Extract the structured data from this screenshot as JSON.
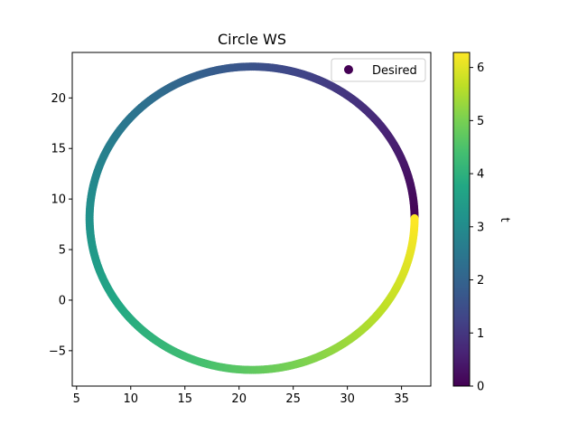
{
  "chart_data": {
    "type": "scatter",
    "title": "Circle WS",
    "xlabel": "",
    "ylabel": "",
    "xlim": [
      4.6,
      37.7
    ],
    "ylim": [
      -8.5,
      24.5
    ],
    "xticks": [
      5,
      10,
      15,
      20,
      25,
      30,
      35
    ],
    "yticks": [
      -5,
      0,
      5,
      10,
      15,
      20
    ],
    "grid": false,
    "legend": {
      "position": "top-right",
      "entries": [
        "Desired"
      ]
    },
    "series": [
      {
        "name": "Desired",
        "center": [
          21.2,
          8.1
        ],
        "radius_x": 15.0,
        "radius_y": 15.0,
        "t_range": [
          0,
          6.283
        ],
        "num_points": 600,
        "color_by": "t"
      }
    ],
    "colorbar": {
      "label": "t",
      "range": [
        0,
        6.283
      ],
      "ticks": [
        0,
        1,
        2,
        3,
        4,
        5,
        6
      ],
      "colormap": "viridis"
    }
  }
}
